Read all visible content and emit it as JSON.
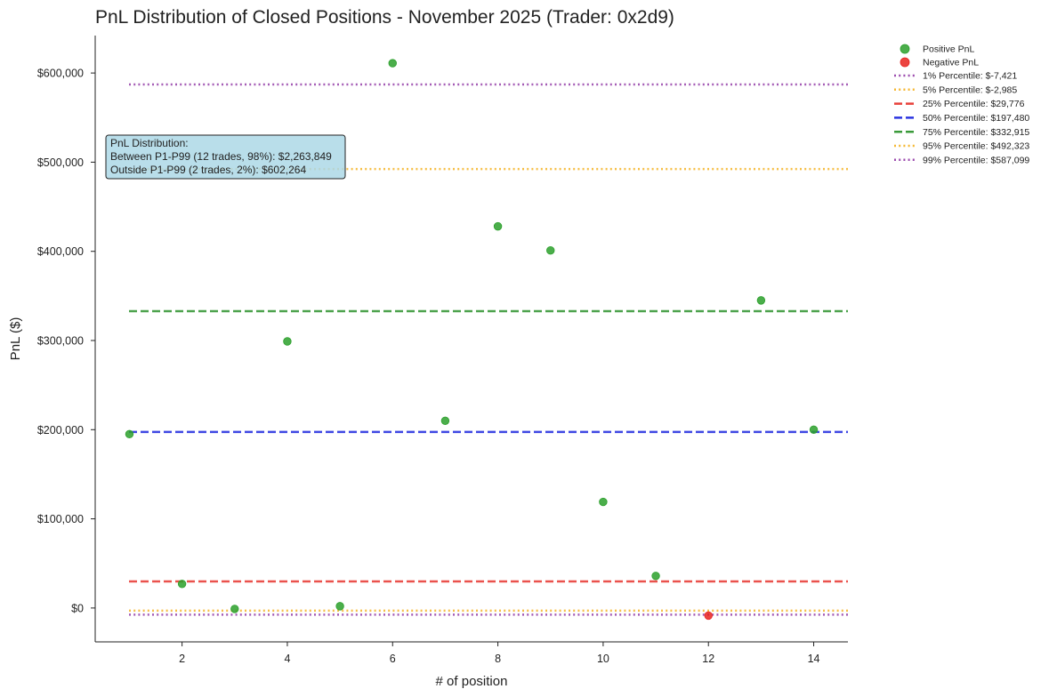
{
  "chart_data": {
    "type": "scatter",
    "title": "PnL Distribution of Closed Positions - November 2025 (Trader: 0x2d9)",
    "xlabel": "# of position",
    "ylabel": "PnL ($)",
    "xlim": [
      0.35,
      14.65
    ],
    "ylim": [
      -38000,
      642000
    ],
    "x_ticks": [
      2,
      4,
      6,
      8,
      10,
      12,
      14
    ],
    "x_tick_labels": [
      "2",
      "4",
      "6",
      "8",
      "10",
      "12",
      "14"
    ],
    "y_ticks": [
      0,
      100000,
      200000,
      300000,
      400000,
      500000,
      600000
    ],
    "y_tick_labels": [
      "$0",
      "$100,000",
      "$200,000",
      "$300,000",
      "$400,000",
      "$500,000",
      "$600,000"
    ],
    "grid": false,
    "legend_position": "outside-top-right",
    "series": [
      {
        "name": "Positive PnL",
        "color": "#2ca02c",
        "x": [
          1,
          2,
          3,
          4,
          5,
          6,
          7,
          8,
          9,
          10,
          11,
          13,
          14
        ],
        "y": [
          195000,
          27000,
          -1000,
          299000,
          2000,
          611000,
          210000,
          428000,
          401000,
          119000,
          36000,
          345000,
          200000
        ]
      },
      {
        "name": "Negative PnL",
        "color": "#e8231f",
        "x": [
          12
        ],
        "y": [
          -8500
        ]
      }
    ],
    "reference_lines": [
      {
        "label": "1% Percentile: $-7,421",
        "value": -7421,
        "color": "#9b4aae",
        "style": "dotted"
      },
      {
        "label": "5% Percentile: $-2,985",
        "value": -2985,
        "color": "#f5b731",
        "style": "dotted"
      },
      {
        "label": "25% Percentile: $29,776",
        "value": 29776,
        "color": "#e8403a",
        "style": "dashed"
      },
      {
        "label": "50% Percentile: $197,480",
        "value": 197480,
        "color": "#2b35e0",
        "style": "dashed"
      },
      {
        "label": "75% Percentile: $332,915",
        "value": 332915,
        "color": "#3a9a3a",
        "style": "dashed"
      },
      {
        "label": "95% Percentile: $492,323",
        "value": 492323,
        "color": "#f5b731",
        "style": "dotted"
      },
      {
        "label": "99% Percentile: $587,099",
        "value": 587099,
        "color": "#9b4aae",
        "style": "dotted"
      }
    ],
    "annotation": {
      "lines": [
        "PnL Distribution:",
        "Between P1-P99 (12 trades, 98%): $2,263,849",
        "Outside P1-P99 (2 trades, 2%): $602,264"
      ],
      "background": "#add8e6"
    }
  }
}
